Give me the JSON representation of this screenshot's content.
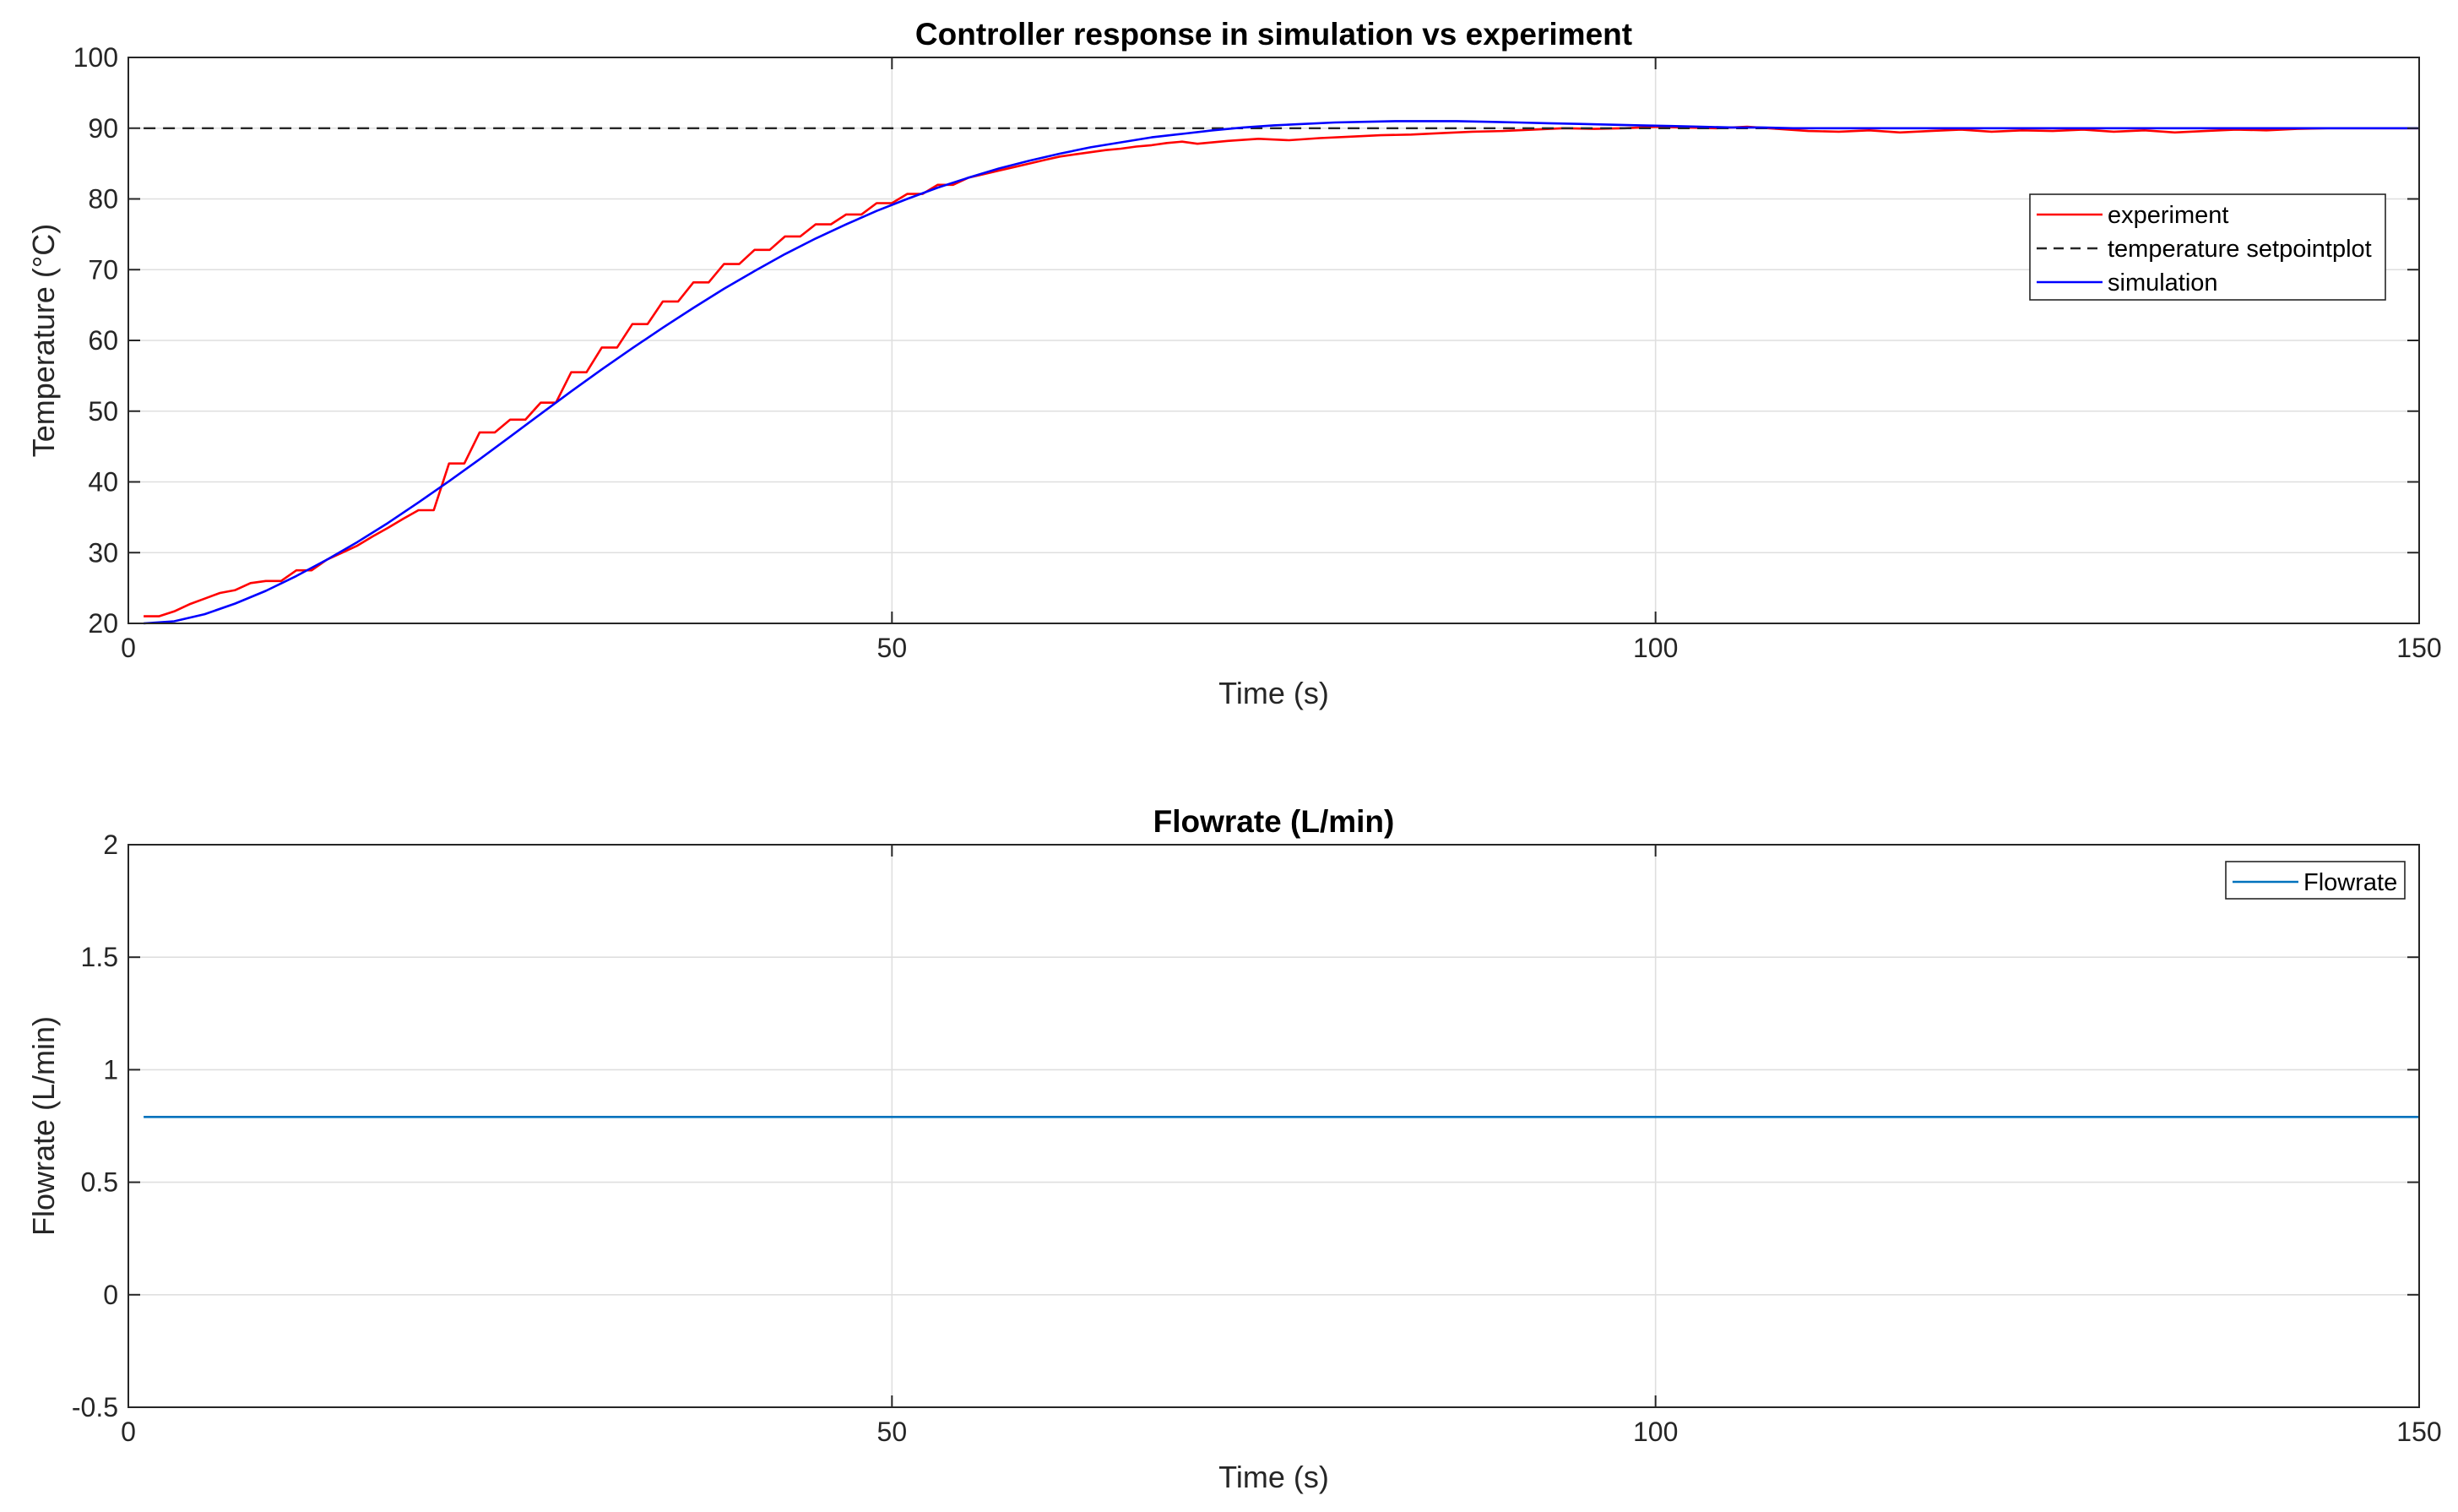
{
  "chart_data": [
    {
      "type": "line",
      "title": "Controller response in simulation vs experiment",
      "xlabel": "Time (s)",
      "ylabel": "Temperature (°C)",
      "xlim": [
        0,
        150
      ],
      "ylim": [
        20,
        100
      ],
      "xticks": [
        0,
        50,
        100,
        150
      ],
      "yticks": [
        20,
        30,
        40,
        50,
        60,
        70,
        80,
        90,
        100
      ],
      "grid": true,
      "legend": "right",
      "series": [
        {
          "name": "experiment",
          "color": "#ff0000",
          "style": "solid",
          "x": [
            1,
            2,
            3,
            4,
            5,
            6,
            7,
            8,
            9,
            10,
            11,
            12,
            13,
            14,
            15,
            16,
            17,
            18,
            19,
            20,
            21,
            22,
            23,
            24,
            25,
            26,
            27,
            28,
            29,
            30,
            31,
            32,
            33,
            34,
            35,
            36,
            37,
            38,
            39,
            40,
            41,
            42,
            43,
            44,
            45,
            46,
            47,
            48,
            49,
            50,
            51,
            52,
            53,
            54,
            55,
            56,
            57,
            58,
            59,
            60,
            61,
            62,
            63,
            64,
            65,
            66,
            67,
            68,
            69,
            70,
            72,
            74,
            76,
            78,
            80,
            82,
            84,
            86,
            88,
            90,
            92,
            94,
            96,
            98,
            100,
            102,
            104,
            106,
            108,
            110,
            112,
            114,
            116,
            118,
            120,
            122,
            124,
            126,
            128,
            130,
            132,
            134,
            136,
            138,
            140,
            142,
            144,
            146,
            148,
            150
          ],
          "y": [
            21,
            21,
            21.7,
            22.7,
            23.5,
            24.3,
            24.7,
            25.7,
            26,
            26,
            27.5,
            27.5,
            29,
            30,
            31,
            32.3,
            33.5,
            34.8,
            36,
            36,
            42.6,
            42.6,
            47,
            47,
            48.8,
            48.8,
            51.2,
            51.2,
            55.5,
            55.5,
            59,
            59,
            62.3,
            62.3,
            65.5,
            65.5,
            68.2,
            68.2,
            70.8,
            70.8,
            72.8,
            72.8,
            74.7,
            74.7,
            76.4,
            76.4,
            77.8,
            77.8,
            79.4,
            79.4,
            80.7,
            80.7,
            82,
            82,
            83,
            83.5,
            84,
            84.5,
            85,
            85.5,
            86,
            86.3,
            86.6,
            86.9,
            87.1,
            87.4,
            87.6,
            87.9,
            88.1,
            87.8,
            88.2,
            88.5,
            88.3,
            88.6,
            88.8,
            89,
            89.1,
            89.3,
            89.5,
            89.6,
            89.8,
            90,
            89.9,
            90,
            90.2,
            90.1,
            90,
            90.2,
            89.9,
            89.6,
            89.5,
            89.7,
            89.4,
            89.6,
            89.8,
            89.5,
            89.7,
            89.6,
            89.8,
            89.5,
            89.7,
            89.4,
            89.6,
            89.8,
            89.7,
            89.9,
            90,
            90,
            90,
            90
          ]
        },
        {
          "name": "temperature setpointplot",
          "color": "#262626",
          "style": "dashed",
          "x": [
            1,
            150
          ],
          "y": [
            90,
            90
          ]
        },
        {
          "name": "simulation",
          "color": "#0000ff",
          "style": "solid",
          "x": [
            1,
            3,
            5,
            7,
            9,
            11,
            13,
            15,
            17,
            19,
            21,
            23,
            25,
            27,
            29,
            31,
            33,
            35,
            37,
            39,
            41,
            43,
            45,
            47,
            49,
            51,
            53,
            55,
            57,
            59,
            61,
            63,
            65,
            67,
            69,
            71,
            73,
            75,
            77,
            79,
            81,
            83,
            85,
            87,
            89,
            91,
            93,
            95,
            97,
            99,
            101,
            103,
            105,
            107,
            109,
            111,
            115,
            120,
            125,
            130,
            135,
            140,
            145,
            150
          ],
          "y": [
            20,
            20.3,
            21.3,
            22.8,
            24.6,
            26.7,
            29,
            31.5,
            34.2,
            37.1,
            40.1,
            43.2,
            46.4,
            49.6,
            52.8,
            55.9,
            58.9,
            61.8,
            64.6,
            67.3,
            69.8,
            72.2,
            74.4,
            76.4,
            78.3,
            80,
            81.6,
            83,
            84.3,
            85.4,
            86.4,
            87.3,
            88,
            88.7,
            89.2,
            89.7,
            90.1,
            90.4,
            90.6,
            90.8,
            90.9,
            91,
            91,
            91,
            90.9,
            90.8,
            90.7,
            90.6,
            90.5,
            90.4,
            90.3,
            90.2,
            90.1,
            90.1,
            90,
            90,
            90,
            90,
            90,
            90,
            90,
            90,
            90,
            90
          ]
        }
      ]
    },
    {
      "type": "line",
      "title": "Flowrate (L/min)",
      "xlabel": "Time (s)",
      "ylabel": "Flowrate (L/min)",
      "xlim": [
        0,
        150
      ],
      "ylim": [
        -0.5,
        2
      ],
      "xticks": [
        0,
        50,
        100,
        150
      ],
      "yticks": [
        -0.5,
        0,
        0.5,
        1,
        1.5,
        2
      ],
      "grid": true,
      "legend": "top-right",
      "series": [
        {
          "name": "Flowrate",
          "color": "#0072bd",
          "style": "solid",
          "x": [
            1,
            150
          ],
          "y": [
            0.79,
            0.79
          ]
        }
      ]
    }
  ]
}
